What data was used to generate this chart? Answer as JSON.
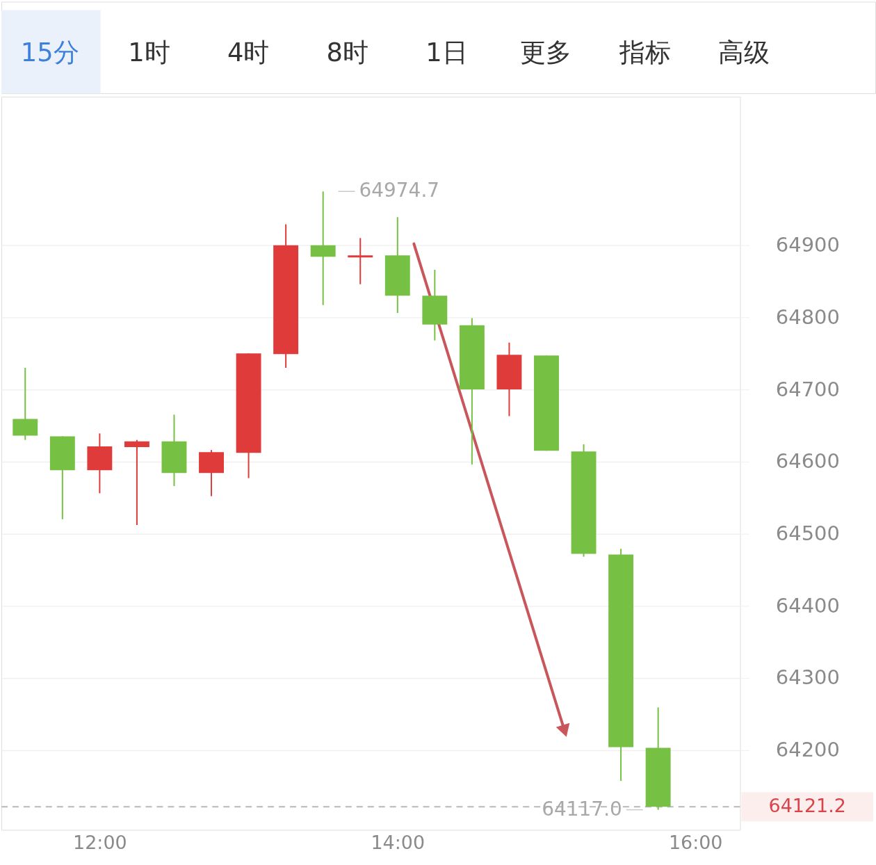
{
  "chart_data": [
    {
      "type": "other",
      "annotations": [
        "15分",
        "1时",
        "4时",
        "8时",
        "1日",
        "更多",
        "指标",
        "高级"
      ]
    },
    {
      "type": "candlestick",
      "x": [
        11.5,
        11.75,
        12.0,
        12.25,
        12.5,
        12.75,
        13.0,
        13.25,
        13.5,
        13.75,
        14.0,
        14.25,
        14.5,
        14.75,
        15.0,
        15.25,
        15.5,
        15.75
      ],
      "ohlc": [
        [
          64659,
          64730,
          64630,
          64636
        ],
        [
          64635,
          64635,
          64520,
          64588
        ],
        [
          64588,
          64639,
          64556,
          64621
        ],
        [
          64620,
          64630,
          64512,
          64628
        ],
        [
          64628,
          64665,
          64566,
          64584
        ],
        [
          64584,
          64616,
          64552,
          64613
        ],
        [
          64612,
          64750,
          64577,
          64750
        ],
        [
          64749,
          64929,
          64730,
          64900
        ],
        [
          64900,
          64974.7,
          64817,
          64884
        ],
        [
          64883,
          64910,
          64846,
          64886
        ],
        [
          64886,
          64939,
          64806,
          64830
        ],
        [
          64830,
          64866,
          64768,
          64790
        ],
        [
          64789,
          64799,
          64596,
          64700
        ],
        [
          64700,
          64765,
          64663,
          64748
        ],
        [
          64747,
          64747,
          64615,
          64615
        ],
        [
          64614,
          64624,
          64468,
          64472
        ],
        [
          64471,
          64479,
          64157,
          64204
        ],
        [
          64203,
          64259,
          64117.0,
          64121.2
        ]
      ],
      "colors": [
        "#76c043",
        "#76c043",
        "#e03b3b",
        "#e03b3b",
        "#76c043",
        "#e03b3b",
        "#e03b3b",
        "#e03b3b",
        "#76c043",
        "#e03b3b",
        "#76c043",
        "#76c043",
        "#76c043",
        "#e03b3b",
        "#76c043",
        "#76c043",
        "#76c043",
        "#76c043"
      ],
      "xlim": [
        11.34,
        16.3
      ],
      "xticks": [
        {
          "value": 12,
          "label": "12:00"
        },
        {
          "value": 14,
          "label": "14:00"
        },
        {
          "value": 16,
          "label": "16:00"
        }
      ],
      "ylim": [
        64089,
        65106
      ],
      "yticks": [
        64200,
        64300,
        64400,
        64500,
        64600,
        64700,
        64800,
        64900
      ],
      "grid": "y",
      "ref_lines": [
        {
          "axis": "y",
          "value": 64121.2,
          "label": "64121.2",
          "color": "#b8b8b8",
          "line_style": "dashed"
        }
      ],
      "annotations": [
        {
          "text": "64974.7",
          "x": 13.5,
          "y": 64974.7
        },
        {
          "text": "64117.0",
          "x": 15.75,
          "y": 64117.0
        }
      ],
      "series": [
        {
          "type": "line",
          "x": [
            14.11,
            15.118
          ],
          "values": [
            64902,
            64229
          ],
          "color": "#c9565b"
        }
      ]
    }
  ]
}
